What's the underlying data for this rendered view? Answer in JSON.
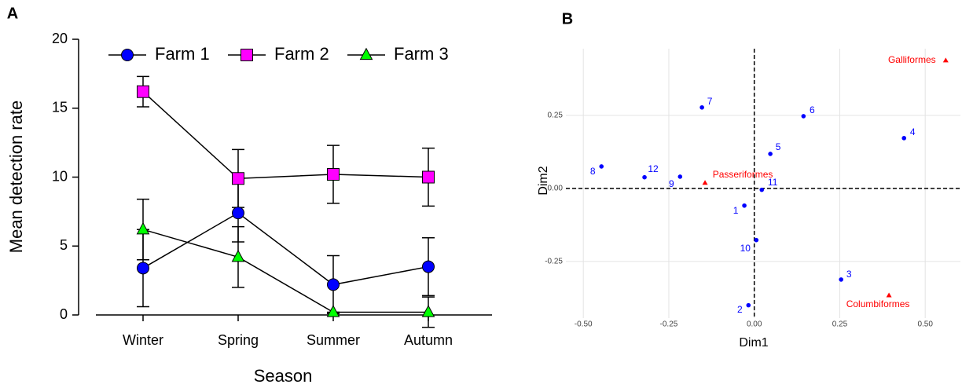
{
  "chart_data": [
    {
      "type": "line",
      "panel": "A",
      "xlabel": "Season",
      "ylabel": "Mean detection rate",
      "categories": [
        "Winter",
        "Spring",
        "Summer",
        "Autumn"
      ],
      "ylim": [
        0,
        20
      ],
      "yticks": [
        0,
        5,
        10,
        15,
        20
      ],
      "legend": "top",
      "series": [
        {
          "name": "Farm 1",
          "color": "#0000ff",
          "marker": "circle",
          "values": [
            3.4,
            7.4,
            2.2,
            3.5
          ],
          "errors": [
            2.8,
            2.1,
            2.1,
            2.1
          ]
        },
        {
          "name": "Farm 2",
          "color": "#ff00ff",
          "marker": "square",
          "values": [
            16.2,
            9.9,
            10.2,
            10.0
          ],
          "errors": [
            1.1,
            2.1,
            2.1,
            2.1
          ]
        },
        {
          "name": "Farm 3",
          "color": "#00ff00",
          "marker": "triangle",
          "values": [
            6.2,
            4.2,
            0.2,
            0.2
          ],
          "errors": [
            2.2,
            2.2,
            0.0,
            1.1
          ]
        }
      ]
    },
    {
      "type": "scatter",
      "panel": "B",
      "xlabel": "Dim1",
      "ylabel": "Dim2",
      "xlim": [
        -0.551,
        0.603
      ],
      "ylim": [
        -0.444,
        0.478
      ],
      "xticks": [
        {
          "value": -0.5,
          "label": "-0.50"
        },
        {
          "value": -0.25,
          "label": "-0.25"
        },
        {
          "value": 0,
          "label": "0.00"
        },
        {
          "value": 0.25,
          "label": "0.25"
        },
        {
          "value": 0.5,
          "label": "0.50"
        }
      ],
      "yticks": [
        {
          "value": -0.25,
          "label": "-0.25"
        },
        {
          "value": 0,
          "label": "0.00"
        },
        {
          "value": 0.25,
          "label": "0.25"
        }
      ],
      "grid": true,
      "hline": 0,
      "vline": 0,
      "series": [
        {
          "color": "#0000ff",
          "marker": "circle",
          "labels": [
            "1",
            "2",
            "3",
            "4",
            "5",
            "6",
            "7",
            "8",
            "9",
            "10",
            "11",
            "12"
          ],
          "x": [
            -0.029,
            -0.017,
            0.254,
            0.438,
            0.047,
            0.144,
            -0.153,
            -0.447,
            -0.217,
            0.006,
            0.022,
            -0.321
          ],
          "y": [
            -0.059,
            -0.4,
            -0.312,
            0.172,
            0.118,
            0.247,
            0.277,
            0.075,
            0.04,
            -0.177,
            -0.005,
            0.038
          ]
        },
        {
          "color": "#ff0000",
          "marker": "triangle",
          "labels": [
            "Galliformes",
            "Passeriformes",
            "Columbiformes"
          ],
          "x": [
            0.56,
            -0.144,
            0.394
          ],
          "y": [
            0.438,
            0.019,
            -0.366
          ]
        }
      ]
    }
  ]
}
